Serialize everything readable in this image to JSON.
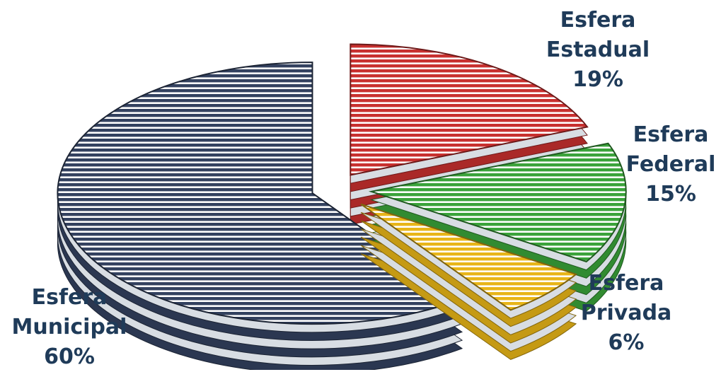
{
  "chart_data": {
    "type": "pie",
    "title": "",
    "style": "3d-exploded-striped",
    "categories": [
      "Esfera Estadual",
      "Esfera Federal",
      "Esfera Privada",
      "Esfera Municipal"
    ],
    "values": [
      19,
      15,
      6,
      60
    ],
    "unit": "%",
    "colors": [
      "#c8302f",
      "#3aa33a",
      "#e8b518",
      "#33415f"
    ],
    "labels": [
      {
        "line1": "Esfera",
        "line2": "Estadual",
        "value": "19%"
      },
      {
        "line1": "Esfera",
        "line2": "Federal",
        "value": "15%"
      },
      {
        "line1": "Esfera",
        "line2": "Privada",
        "value": "6%"
      },
      {
        "line1": "Esfera",
        "line2": "Municipal",
        "value": "60%"
      }
    ]
  }
}
